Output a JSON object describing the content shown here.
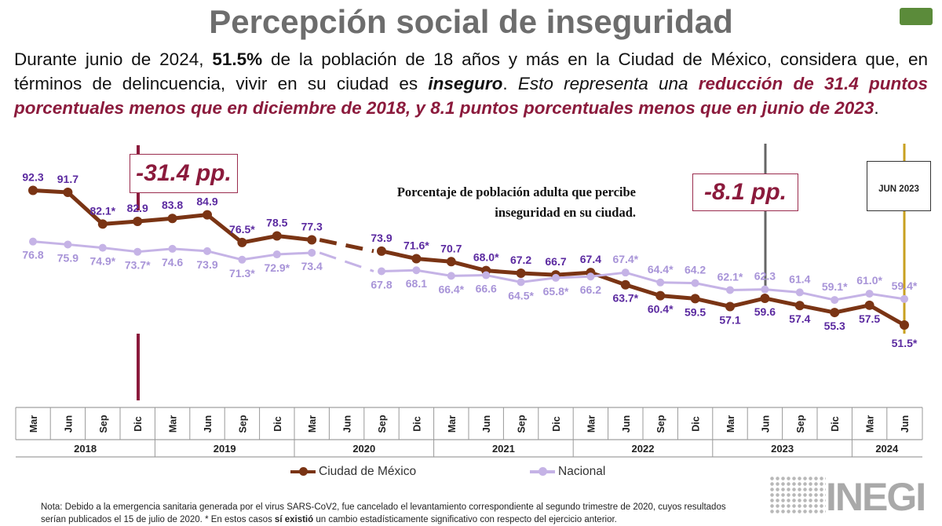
{
  "title": "Percepción social de inseguridad",
  "intro": {
    "p1": "Durante junio de 2024, ",
    "pct": "51.5%",
    "p2": " de la población de 18 años y más en la Ciudad de México, considera que, en términos de delincuencia, vivir en su ciudad es ",
    "inseguro": "inseguro",
    "p3": ". ",
    "p4": "Esto representa una ",
    "red": "reducción de 31.4 puntos porcentuales menos que en diciembre de 2018, y 8.1 puntos porcentuales menos que en junio de 2023",
    "p5": "."
  },
  "callouts": {
    "dec2018": "-31.4 pp.",
    "jun2023": "-8.1 pp."
  },
  "jun_box": "JUN 2023",
  "chart_caption": {
    "line1": "Porcentaje de población adulta que percibe",
    "line2": "inseguridad en su ciudad."
  },
  "legend": {
    "cdmx": "Ciudad de México",
    "nacional": "Nacional"
  },
  "footnote": {
    "p1": "Nota: Debido a la emergencia sanitaria generada por el virus SARS-CoV2, fue cancelado el levantamiento correspondiente al segundo trimestre de 2020, cuyos resultados serían publicados el 15 de julio de 2020. * En estos casos ",
    "bold": "sí existió",
    "p2": " un cambio estadísticamente significativo con respecto del ejercicio anterior."
  },
  "logo_text": "INEGI",
  "colors": {
    "cdmx": "#7a3414",
    "nacional": "#c5b3e6",
    "label_cdmx": "#5b2aa0",
    "label_nac": "#a894d8",
    "accent": "#8b1a3c",
    "gray_marker": "#666666",
    "gold_marker": "#c8a020"
  },
  "chart_data": {
    "type": "line",
    "categories": [
      "Mar",
      "Jun",
      "Sep",
      "Dic",
      "Mar",
      "Jun",
      "Sep",
      "Dic",
      "Mar",
      "Jun",
      "Sep",
      "Dic",
      "Mar",
      "Jun",
      "Sep",
      "Dic",
      "Mar",
      "Jun",
      "Sep",
      "Dic",
      "Mar",
      "Jun",
      "Sep",
      "Dic",
      "Mar",
      "Jun"
    ],
    "years": [
      {
        "label": "2018",
        "from": 0,
        "to": 3
      },
      {
        "label": "2019",
        "from": 4,
        "to": 7
      },
      {
        "label": "2020",
        "from": 8,
        "to": 11
      },
      {
        "label": "2021",
        "from": 12,
        "to": 15
      },
      {
        "label": "2022",
        "from": 16,
        "to": 19
      },
      {
        "label": "2023",
        "from": 20,
        "to": 23
      },
      {
        "label": "2024",
        "from": 24,
        "to": 25
      }
    ],
    "series": [
      {
        "name": "Ciudad de México",
        "values": [
          92.3,
          91.7,
          82.1,
          82.9,
          83.8,
          84.9,
          76.5,
          78.5,
          77.3,
          null,
          73.9,
          71.6,
          70.7,
          68.0,
          67.2,
          66.7,
          67.4,
          63.7,
          60.4,
          59.5,
          57.1,
          59.6,
          57.4,
          55.3,
          57.5,
          51.5
        ],
        "labels": [
          "92.3",
          "91.7",
          "82.1*",
          "82.9",
          "83.8",
          "84.9",
          "76.5*",
          "78.5",
          "77.3",
          "",
          "73.9",
          "71.6*",
          "70.7",
          "68.0*",
          "67.2",
          "66.7",
          "67.4",
          "63.7*",
          "60.4*",
          "59.5",
          "57.1",
          "59.6",
          "57.4",
          "55.3",
          "57.5",
          "51.5*"
        ]
      },
      {
        "name": "Nacional",
        "values": [
          76.8,
          75.9,
          74.9,
          73.7,
          74.6,
          73.9,
          71.3,
          72.9,
          73.4,
          null,
          67.8,
          68.1,
          66.4,
          66.6,
          64.5,
          65.8,
          66.2,
          67.4,
          64.4,
          64.2,
          62.1,
          62.3,
          61.4,
          59.1,
          61.0,
          59.4
        ],
        "labels": [
          "76.8",
          "75.9",
          "74.9*",
          "73.7*",
          "74.6",
          "73.9",
          "71.3*",
          "72.9*",
          "73.4",
          "",
          "67.8",
          "68.1",
          "66.4*",
          "66.6",
          "64.5*",
          "65.8*",
          "66.2",
          "67.4*",
          "64.4*",
          "64.2",
          "62.1*",
          "62.3",
          "61.4",
          "59.1*",
          "61.0*",
          "59.4*"
        ]
      }
    ],
    "gap_note": "No data for Jun 2020 (dashed connection Mar 2020 – Sep 2020)",
    "ylim": [
      45,
      95
    ],
    "markers": [
      "Dic 2018",
      "Jun 2023",
      "Jun 2024"
    ]
  }
}
